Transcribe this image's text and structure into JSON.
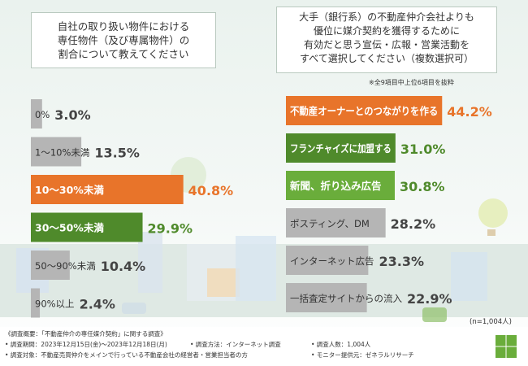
{
  "colors": {
    "orange": "#e8742a",
    "green": "#4f8a2b",
    "light_green": "#6aad3b",
    "gray": "#b5b5b5",
    "value_orange": "#e8742a",
    "value_green": "#4f8a2b",
    "value_gray": "#444444"
  },
  "chart_data": [
    {
      "type": "bar",
      "orientation": "horizontal",
      "title": "自社の取り扱い物件における専任物件（及び専属物件）の割合について教えてください",
      "categories": [
        "0%",
        "1〜10%未満",
        "10〜30%未満",
        "30〜50%未満",
        "50〜90%未満",
        "90%以上"
      ],
      "values": [
        3.0,
        13.5,
        40.8,
        29.9,
        10.4,
        2.4
      ],
      "value_labels": [
        "3.0%",
        "13.5%",
        "40.8%",
        "29.9%",
        "10.4%",
        "2.4%"
      ],
      "highlight": [
        "gray",
        "gray",
        "orange",
        "green",
        "gray",
        "gray"
      ],
      "unit": "%"
    },
    {
      "type": "bar",
      "orientation": "horizontal",
      "title": "大手（銀行系）の不動産仲介会社よりも優位に媒介契約を獲得するために有効だと思う宣伝・広報・営業活動をすべて選択してください（複数選択可）",
      "note": "※全9項目中上位6項目を抜粋",
      "categories": [
        "不動産オーナーとのつながりを作る",
        "フランチャイズに加盟する",
        "新聞、折り込み広告",
        "ポスティング、DM",
        "インターネット広告",
        "一括査定サイトからの流入"
      ],
      "values": [
        44.2,
        31.0,
        30.8,
        28.2,
        23.3,
        22.9
      ],
      "value_labels": [
        "44.2%",
        "31.0%",
        "30.8%",
        "28.2%",
        "23.3%",
        "22.9%"
      ],
      "highlight": [
        "orange",
        "green",
        "light_green",
        "gray",
        "gray",
        "gray"
      ],
      "unit": "%",
      "sample": "(n=1,004人)"
    }
  ],
  "questions": {
    "left": "自社の取り扱い物件における\n専任物件（及び専属物件）の\n割合について教えてください",
    "right": "大手（銀行系）の不動産仲介会社よりも\n優位に媒介契約を獲得するために\n有効だと思う宣伝・広報・営業活動を\nすべて選択してください（複数選択可）"
  },
  "footer": {
    "overview": "《調査概要：「不動産仲介の専任媒介契約」に関する調査》",
    "period": "• 調査期間：2023年12月15日(金)〜2023年12月18日(月)",
    "method": "• 調査方法：インターネット調査",
    "count": "• 調査人数：1,004人",
    "target": "• 調査対象：不動産売買仲介をメインで行っている不動産会社の経営者・営業担当者の方",
    "provider": "• モニター提供元：ゼネラルリサーチ"
  }
}
